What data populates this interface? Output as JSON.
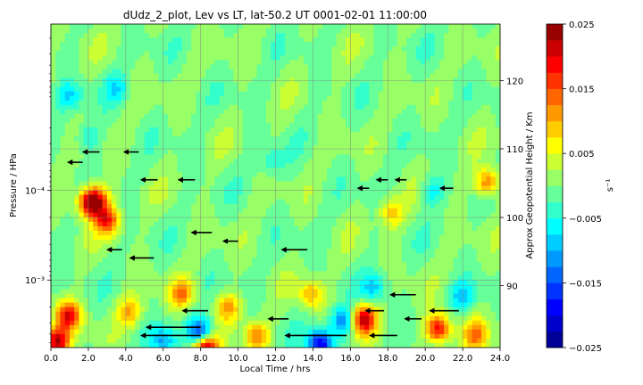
{
  "chart_data": {
    "type": "heatmap",
    "title": "dUdz_2_plot, Lev vs LT, lat-50.2 UT 0001-02-01 11:00:00",
    "xlabel": "Local Time / hrs",
    "ylabel_left": "Pressure / HPa",
    "ylabel_right": "Approx Geopotential Height / Km",
    "colorbar_label": "s⁻¹",
    "x_range": [
      0.0,
      24.0
    ],
    "x_ticks": [
      "0.0",
      "2.0",
      "4.0",
      "6.0",
      "8.0",
      "10.0",
      "12.0",
      "14.0",
      "16.0",
      "18.0",
      "20.0",
      "22.0",
      "24.0"
    ],
    "y_scale": "log",
    "y_axis_inverted": true,
    "y_range_hpa": [
      1.39e-06,
      0.00567
    ],
    "y_ticks_left": [
      {
        "label": "10⁻⁴",
        "value": 0.0001
      },
      {
        "label": "10⁻³",
        "value": 0.001
      }
    ],
    "y_ticks_right": [
      "90",
      "100",
      "110",
      "120"
    ],
    "grid": true,
    "color_range": [
      -0.025,
      0.025
    ],
    "colormap": "jet",
    "colorbar_ticks": [
      "0.025",
      "0.015",
      "0.005",
      "−0.005",
      "−0.015",
      "−0.025"
    ],
    "hotspots": [
      {
        "lt": 2.1,
        "p": 0.000137,
        "v": 0.022
      },
      {
        "lt": 3.0,
        "p": 0.000214,
        "v": 0.017
      },
      {
        "lt": 2.5,
        "p": 0.00012,
        "v": 0.01
      },
      {
        "lt": 1.0,
        "p": 8.9e-06,
        "v": -0.007
      },
      {
        "lt": 3.5,
        "p": 7.24e-06,
        "v": -0.006
      },
      {
        "lt": 2.0,
        "p": 2.57e-05,
        "v": -0.006
      },
      {
        "lt": 23.3,
        "p": 8.13e-05,
        "v": 0.014
      },
      {
        "lt": 11.8,
        "p": 4.79e-05,
        "v": -0.005
      },
      {
        "lt": 18.2,
        "p": 0.000178,
        "v": 0.009
      },
      {
        "lt": 20.4,
        "p": 0.000102,
        "v": -0.006
      },
      {
        "lt": 0.9,
        "p": 0.00249,
        "v": 0.019
      },
      {
        "lt": 16.7,
        "p": 0.00276,
        "v": 0.022
      },
      {
        "lt": 15.6,
        "p": 0.0029,
        "v": -0.013
      },
      {
        "lt": 8.0,
        "p": 0.00403,
        "v": -0.022
      },
      {
        "lt": 8.2,
        "p": 0.00552,
        "v": 0.028
      },
      {
        "lt": 0.3,
        "p": 0.00485,
        "v": 0.022
      },
      {
        "lt": 14.4,
        "p": 0.00515,
        "v": -0.021
      },
      {
        "lt": 4.2,
        "p": 0.00229,
        "v": 0.01
      },
      {
        "lt": 7.0,
        "p": 0.0014,
        "v": 0.012
      },
      {
        "lt": 13.9,
        "p": 0.00143,
        "v": 0.01
      },
      {
        "lt": 20.7,
        "p": 0.00349,
        "v": 0.02
      },
      {
        "lt": 22.7,
        "p": 0.00409,
        "v": 0.012
      },
      {
        "lt": 11.0,
        "p": 0.00423,
        "v": 0.012
      },
      {
        "lt": 9.5,
        "p": 0.00202,
        "v": 0.01
      },
      {
        "lt": 17.3,
        "p": 0.00122,
        "v": -0.008
      },
      {
        "lt": 22.0,
        "p": 0.00154,
        "v": -0.008
      },
      {
        "lt": 6.0,
        "p": 0.00475,
        "v": -0.01
      }
    ],
    "wind_arrows": [
      {
        "lt": 2.6,
        "p": 3.72e-05,
        "u": -0.7
      },
      {
        "lt": 4.7,
        "p": 3.72e-05,
        "u": -0.6
      },
      {
        "lt": 1.7,
        "p": 4.85e-05,
        "u": -0.6
      },
      {
        "lt": 7.7,
        "p": 7.61e-05,
        "u": -0.7
      },
      {
        "lt": 5.7,
        "p": 7.61e-05,
        "u": -0.7
      },
      {
        "lt": 19.0,
        "p": 7.61e-05,
        "u": -0.4
      },
      {
        "lt": 18.0,
        "p": 7.61e-05,
        "u": -0.4
      },
      {
        "lt": 21.5,
        "p": 9.44e-05,
        "u": -0.5
      },
      {
        "lt": 17.0,
        "p": 9.44e-05,
        "u": -0.4
      },
      {
        "lt": 8.6,
        "p": 0.000295,
        "u": -0.9
      },
      {
        "lt": 10.0,
        "p": 0.000368,
        "u": -0.6
      },
      {
        "lt": 3.8,
        "p": 0.000458,
        "u": -0.6
      },
      {
        "lt": 13.7,
        "p": 0.000458,
        "u": -1.2
      },
      {
        "lt": 5.5,
        "p": 0.000567,
        "u": -1.1
      },
      {
        "lt": 19.5,
        "p": 0.00146,
        "u": -1.2
      },
      {
        "lt": 0.0,
        "p": 0.00146,
        "u": -1.1
      },
      {
        "lt": 8.4,
        "p": 0.0022,
        "u": -1.2
      },
      {
        "lt": 21.8,
        "p": 0.0022,
        "u": -1.4
      },
      {
        "lt": 17.8,
        "p": 0.0022,
        "u": -0.8
      },
      {
        "lt": 12.7,
        "p": 0.00271,
        "u": -0.9
      },
      {
        "lt": 19.8,
        "p": 0.00271,
        "u": -0.7
      },
      {
        "lt": 8.0,
        "p": 0.00336,
        "u": -2.8
      },
      {
        "lt": 8.0,
        "p": 0.00416,
        "u": -3.1
      },
      {
        "lt": 15.8,
        "p": 0.00416,
        "u": -3.2
      },
      {
        "lt": 18.5,
        "p": 0.00416,
        "u": -1.3
      }
    ]
  }
}
